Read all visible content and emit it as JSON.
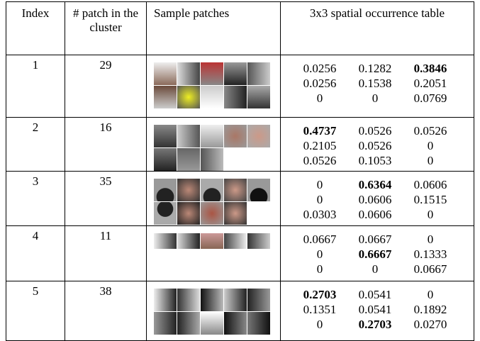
{
  "header": [
    "Index",
    "# patch in the cluster",
    "Sample patches",
    "3x3 spatial occurrence table"
  ],
  "rows": [
    {
      "index": 1,
      "count": 29,
      "table": [
        [
          "0.0256",
          "0.1282",
          "0.3846"
        ],
        [
          "0.0256",
          "0.1538",
          "0.2051"
        ],
        [
          "0",
          "0",
          "0.0769"
        ]
      ],
      "bold": [
        [
          0,
          2
        ]
      ]
    },
    {
      "index": 2,
      "count": 16,
      "table": [
        [
          "0.4737",
          "0.0526",
          "0.0526"
        ],
        [
          "0.2105",
          "0.0526",
          "0"
        ],
        [
          "0.0526",
          "0.1053",
          "0"
        ]
      ],
      "bold": [
        [
          0,
          0
        ]
      ]
    },
    {
      "index": 3,
      "count": 35,
      "table": [
        [
          "0",
          "0.6364",
          "0.0606"
        ],
        [
          "0",
          "0.0606",
          "0.1515"
        ],
        [
          "0.0303",
          "0.0606",
          "0"
        ]
      ],
      "bold": [
        [
          0,
          1
        ]
      ]
    },
    {
      "index": 4,
      "count": 11,
      "table": [
        [
          "0.0667",
          "0.0667",
          "0"
        ],
        [
          "0",
          "0.6667",
          "0.1333"
        ],
        [
          "0",
          "0",
          "0.0667"
        ]
      ],
      "bold": [
        [
          1,
          1
        ]
      ]
    },
    {
      "index": 5,
      "count": 38,
      "table": [
        [
          "0.2703",
          "0.0541",
          "0"
        ],
        [
          "0.1351",
          "0.0541",
          "0.1892"
        ],
        [
          "0",
          "0.2703",
          "0.0270"
        ]
      ],
      "bold": [
        [
          0,
          0
        ],
        [
          2,
          1
        ]
      ]
    }
  ]
}
